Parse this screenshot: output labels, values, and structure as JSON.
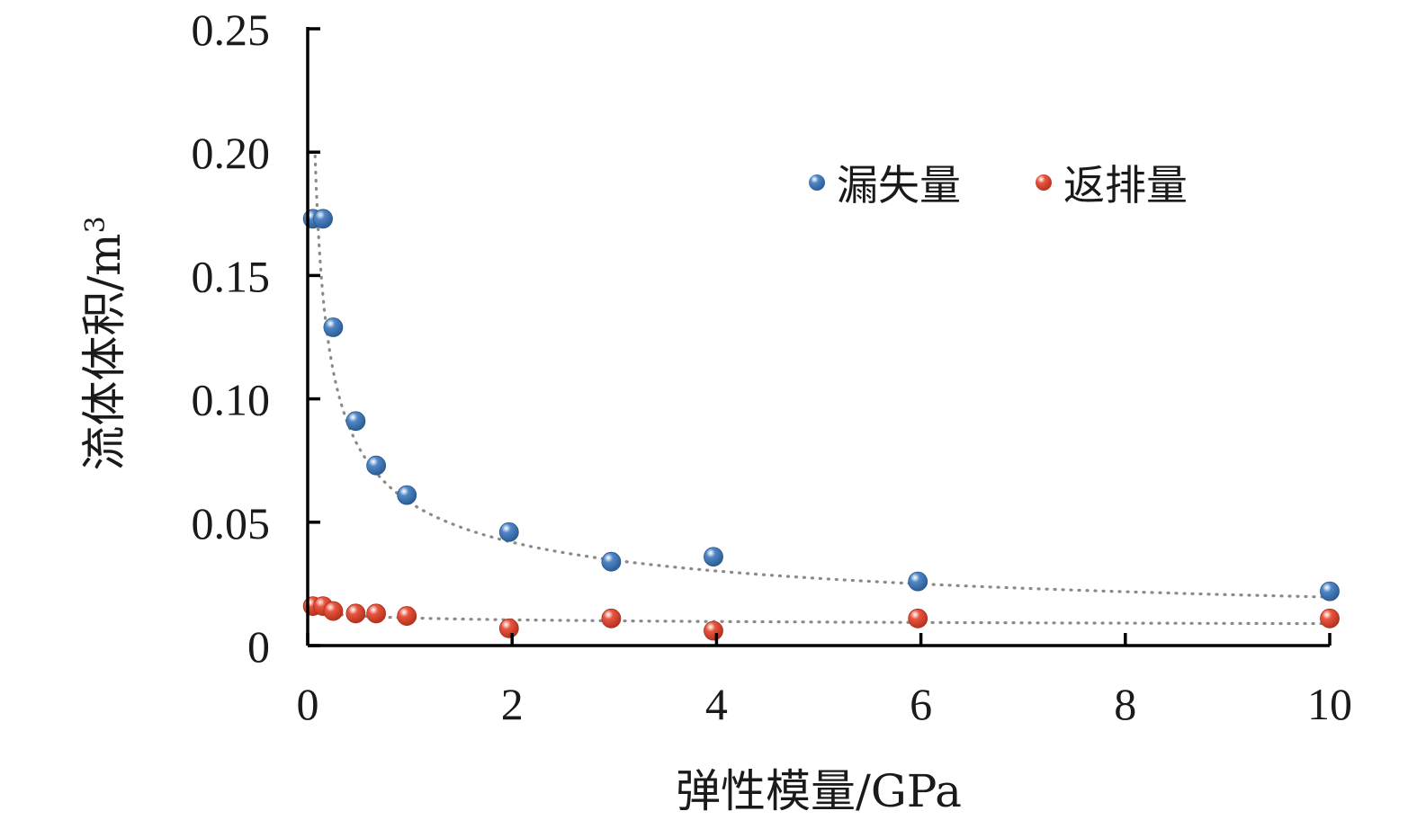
{
  "chart_data": {
    "type": "scatter",
    "title": "",
    "xlabel": "弹性模量/GPa",
    "ylabel": "流体体积/m",
    "ylabel_superscript": "3",
    "xlim": [
      0,
      10
    ],
    "ylim": [
      0,
      0.25
    ],
    "x_ticks": [
      0,
      2,
      4,
      6,
      8,
      10
    ],
    "x_tick_labels": [
      "0",
      "2",
      "4",
      "6",
      "8",
      "10"
    ],
    "y_ticks": [
      0,
      0.05,
      0.1,
      0.15,
      0.2,
      0.25
    ],
    "y_tick_labels": [
      "0",
      "0.05",
      "0.10",
      "0.15",
      "0.20",
      "0.25"
    ],
    "grid": false,
    "legend_position": "top-right",
    "series": [
      {
        "name": "漏失量",
        "color": "#4f86c6",
        "x": [
          0.05,
          0.15,
          0.25,
          0.47,
          0.67,
          0.97,
          1.97,
          2.97,
          3.97,
          5.97,
          10.0
        ],
        "y": [
          0.173,
          0.173,
          0.129,
          0.091,
          0.073,
          0.061,
          0.046,
          0.034,
          0.036,
          0.026,
          0.022
        ],
        "trendline": {
          "type": "power",
          "coefficient": 0.058,
          "exponent": -0.47,
          "x_range": [
            0.03,
            10
          ]
        }
      },
      {
        "name": "返排量",
        "color": "#e8553e",
        "x": [
          0.05,
          0.15,
          0.25,
          0.47,
          0.67,
          0.97,
          1.97,
          2.97,
          3.97,
          5.97,
          10.0
        ],
        "y": [
          0.016,
          0.016,
          0.014,
          0.013,
          0.013,
          0.012,
          0.007,
          0.011,
          0.006,
          0.011,
          0.011
        ],
        "trendline": {
          "type": "power",
          "coefficient": 0.0112,
          "exponent": -0.1,
          "x_range": [
            0.03,
            10
          ]
        }
      }
    ]
  }
}
